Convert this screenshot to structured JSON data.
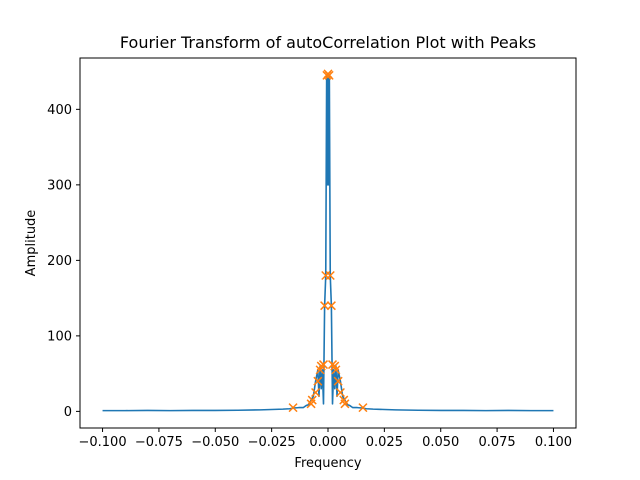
{
  "chart_data": {
    "type": "line",
    "title": "Fourier Transform of autoCorrelation Plot with Peaks",
    "xlabel": "Frequency",
    "ylabel": "Amplitude",
    "xlim": [
      -0.11,
      0.11
    ],
    "ylim": [
      -22,
      468
    ],
    "grid": false,
    "xticks": [
      {
        "value": -0.1,
        "label": "−0.100"
      },
      {
        "value": -0.075,
        "label": "−0.075"
      },
      {
        "value": -0.05,
        "label": "−0.050"
      },
      {
        "value": -0.025,
        "label": "−0.025"
      },
      {
        "value": 0.0,
        "label": "0.000"
      },
      {
        "value": 0.025,
        "label": "0.025"
      },
      {
        "value": 0.05,
        "label": "0.050"
      },
      {
        "value": 0.075,
        "label": "0.075"
      },
      {
        "value": 0.1,
        "label": "0.100"
      }
    ],
    "yticks": [
      {
        "value": 0,
        "label": "0"
      },
      {
        "value": 100,
        "label": "100"
      },
      {
        "value": 200,
        "label": "200"
      },
      {
        "value": 300,
        "label": "300"
      },
      {
        "value": 400,
        "label": "400"
      }
    ],
    "series": [
      {
        "color": "#1f77b4",
        "style": "line",
        "x": [
          -0.1,
          -0.09,
          -0.08,
          -0.07,
          -0.06,
          -0.05,
          -0.04,
          -0.03,
          -0.025,
          -0.02,
          -0.017,
          -0.015,
          -0.013,
          -0.011,
          -0.0095,
          -0.0085,
          -0.0075,
          -0.0065,
          -0.0055,
          -0.0045,
          -0.004,
          -0.0035,
          -0.003,
          -0.0025,
          -0.002,
          -0.0015,
          -0.001,
          -0.0006,
          -0.0003,
          0.0,
          0.0003,
          0.0006,
          0.001,
          0.0015,
          0.002,
          0.0025,
          0.003,
          0.0035,
          0.004,
          0.0045,
          0.0055,
          0.0065,
          0.0075,
          0.0085,
          0.0095,
          0.011,
          0.013,
          0.015,
          0.017,
          0.02,
          0.025,
          0.03,
          0.04,
          0.05,
          0.06,
          0.07,
          0.08,
          0.09,
          0.1
        ],
        "y": [
          1,
          1,
          1.2,
          1,
          1.3,
          1.2,
          1.5,
          2,
          2.5,
          3,
          3.5,
          4.5,
          5,
          5,
          8,
          9,
          15,
          20,
          40,
          55,
          20,
          60,
          30,
          55,
          10,
          140,
          180,
          445,
          300,
          447,
          300,
          445,
          180,
          140,
          10,
          55,
          30,
          60,
          20,
          55,
          40,
          20,
          15,
          9,
          8,
          5,
          5,
          4.5,
          3.5,
          3,
          2.5,
          2,
          1.5,
          1.2,
          1.3,
          1,
          1.2,
          1,
          1
        ]
      },
      {
        "color": "#ff7f0e",
        "style": "markers",
        "marker": "x",
        "x": [
          -0.0155,
          -0.0075,
          -0.007,
          -0.0055,
          -0.0045,
          -0.0035,
          -0.003,
          -0.002,
          -0.0015,
          -0.001,
          -0.0005,
          0.0,
          0.0005,
          0.001,
          0.0015,
          0.002,
          0.003,
          0.0035,
          0.0045,
          0.0055,
          0.007,
          0.0075,
          0.0155
        ],
        "y": [
          5,
          10,
          15,
          25,
          40,
          55,
          60,
          62,
          140,
          180,
          445,
          447,
          445,
          180,
          140,
          62,
          60,
          55,
          40,
          25,
          15,
          10,
          5
        ]
      }
    ]
  }
}
